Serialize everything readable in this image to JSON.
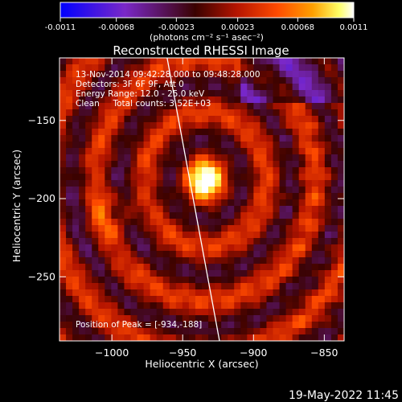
{
  "colorbar": {
    "ticks": [
      "-0.0011",
      "-0.00068",
      "-0.00023",
      "0.00023",
      "0.00068",
      "0.0011"
    ],
    "tick_values": [
      -0.0011,
      -0.00068,
      -0.00023,
      0.00023,
      0.00068,
      0.0011
    ],
    "range": [
      -0.0011,
      0.0011
    ],
    "units_label": "(photons cm⁻² s⁻¹ asec⁻²)",
    "colors": [
      "#0000ff",
      "#7a28c8",
      "#5a0a00",
      "#b41400",
      "#ff4b00",
      "#ffa000",
      "#ffff66",
      "#ffffff"
    ]
  },
  "header": {
    "line1": "13-Nov-2014 09:42:28.000 to 09:48:28.000",
    "line2": "Detectors: 3F 6F 9F, Att 0",
    "line3": "Energy Range: 12.0 - 25.0 keV",
    "line4": "Clean     Total counts: 3.52E+03"
  },
  "annotation": {
    "peak": "Position of Peak = [-934,-188]"
  },
  "footer": {
    "timestamp": "19-May-2022 11:45"
  },
  "chart_data": {
    "type": "heatmap",
    "title": "Reconstructed RHESSI Image",
    "xlabel": "Heliocentric X (arcsec)",
    "ylabel": "Heliocentric Y (arcsec)",
    "xlim": [
      -1037,
      -836
    ],
    "ylim": [
      -291,
      -110
    ],
    "x_ticks": [
      -1000,
      -950,
      -900,
      -850
    ],
    "x_tick_labels": [
      "−1000",
      "−950",
      "−900",
      "−850"
    ],
    "y_ticks": [
      -150,
      -200,
      -250
    ],
    "y_tick_labels": [
      "−150",
      "−200",
      "−250"
    ],
    "peak": {
      "x": -934,
      "y": -188
    },
    "limb_line": [
      [
        -961,
        -110
      ],
      [
        -924,
        -291
      ]
    ],
    "grid": false
  }
}
